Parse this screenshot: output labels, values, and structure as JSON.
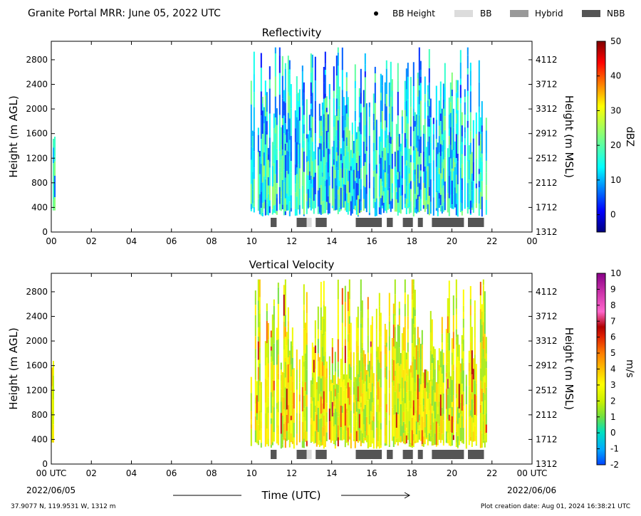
{
  "header": {
    "title": "Granite Portal MRR:  June 05, 2022 UTC",
    "legend": [
      {
        "label": "BB Height",
        "kind": "dot",
        "color": "#000000"
      },
      {
        "label": "BB",
        "kind": "box",
        "color": "#dcdcdc"
      },
      {
        "label": "Hybrid",
        "kind": "box",
        "color": "#999999"
      },
      {
        "label": "NBB",
        "kind": "box",
        "color": "#555555"
      }
    ]
  },
  "footer": {
    "location": "37.9077 N, 119.9531 W, 1312 m",
    "creation": "Plot creation date: Aug 01, 2024 16:38:21 UTC",
    "xlabel": "Time (UTC)",
    "start_date": "2022/06/05",
    "end_date": "2022/06/06"
  },
  "chart_data": [
    {
      "type": "heatmap",
      "title": "Reflectivity",
      "ylabel": "Height (m AGL)",
      "y2label": "Height (m MSL)",
      "xlim": [
        0,
        24
      ],
      "ylim": [
        0,
        3100
      ],
      "x_ticks": [
        "00",
        "02",
        "04",
        "06",
        "08",
        "10",
        "12",
        "14",
        "16",
        "18",
        "20",
        "22",
        "00"
      ],
      "y_ticks": [
        0,
        400,
        800,
        1200,
        1600,
        2000,
        2400,
        2800
      ],
      "y2_ticks": [
        1312,
        1712,
        2112,
        2512,
        2912,
        3312,
        3712,
        4112
      ],
      "colorbar": {
        "label": "dBZ",
        "range": [
          -5,
          50
        ],
        "ticks": [
          0,
          10,
          20,
          30,
          40,
          50
        ],
        "colormap": "jet"
      },
      "echo_periods_utc": [
        [
          0.0,
          0.15
        ],
        [
          9.95,
          21.75
        ]
      ],
      "precip_type_bars": [
        {
          "start": 10.95,
          "end": 11.25,
          "type": "NBB"
        },
        {
          "start": 12.25,
          "end": 12.75,
          "type": "NBB"
        },
        {
          "start": 12.75,
          "end": 13.0,
          "type": "BB"
        },
        {
          "start": 13.2,
          "end": 13.75,
          "type": "NBB"
        },
        {
          "start": 15.2,
          "end": 16.5,
          "type": "NBB"
        },
        {
          "start": 16.75,
          "end": 17.05,
          "type": "NBB"
        },
        {
          "start": 17.55,
          "end": 18.05,
          "type": "NBB"
        },
        {
          "start": 18.3,
          "end": 18.55,
          "type": "NBB"
        },
        {
          "start": 19.0,
          "end": 20.6,
          "type": "NBB"
        },
        {
          "start": 20.8,
          "end": 21.6,
          "type": "NBB"
        }
      ]
    },
    {
      "type": "heatmap",
      "title": "Vertical Velocity",
      "ylabel": "Height (m AGL)",
      "y2label": "Height (m MSL)",
      "xlim": [
        0,
        24
      ],
      "ylim": [
        0,
        3100
      ],
      "x_ticks": [
        "00 UTC",
        "02",
        "04",
        "06",
        "08",
        "10",
        "12",
        "14",
        "16",
        "18",
        "20",
        "22",
        "00 UTC"
      ],
      "y_ticks": [
        0,
        400,
        800,
        1200,
        1600,
        2000,
        2400,
        2800
      ],
      "y2_ticks": [
        1312,
        1712,
        2112,
        2512,
        2912,
        3312,
        3712,
        4112
      ],
      "colorbar": {
        "label": "m/s",
        "range": [
          -2,
          10
        ],
        "ticks": [
          -2,
          -1,
          0,
          1,
          2,
          3,
          4,
          5,
          6,
          7,
          8,
          9,
          10
        ],
        "colormap": "velocity"
      },
      "echo_periods_utc": [
        [
          0.0,
          0.15
        ],
        [
          9.95,
          21.75
        ]
      ],
      "precip_type_bars": [
        {
          "start": 10.95,
          "end": 11.25,
          "type": "NBB"
        },
        {
          "start": 12.25,
          "end": 12.75,
          "type": "NBB"
        },
        {
          "start": 12.75,
          "end": 13.0,
          "type": "BB"
        },
        {
          "start": 13.2,
          "end": 13.75,
          "type": "NBB"
        },
        {
          "start": 15.2,
          "end": 16.5,
          "type": "NBB"
        },
        {
          "start": 16.75,
          "end": 17.05,
          "type": "NBB"
        },
        {
          "start": 17.55,
          "end": 18.05,
          "type": "NBB"
        },
        {
          "start": 18.3,
          "end": 18.55,
          "type": "NBB"
        },
        {
          "start": 19.0,
          "end": 20.6,
          "type": "NBB"
        },
        {
          "start": 20.8,
          "end": 21.6,
          "type": "NBB"
        }
      ]
    }
  ]
}
